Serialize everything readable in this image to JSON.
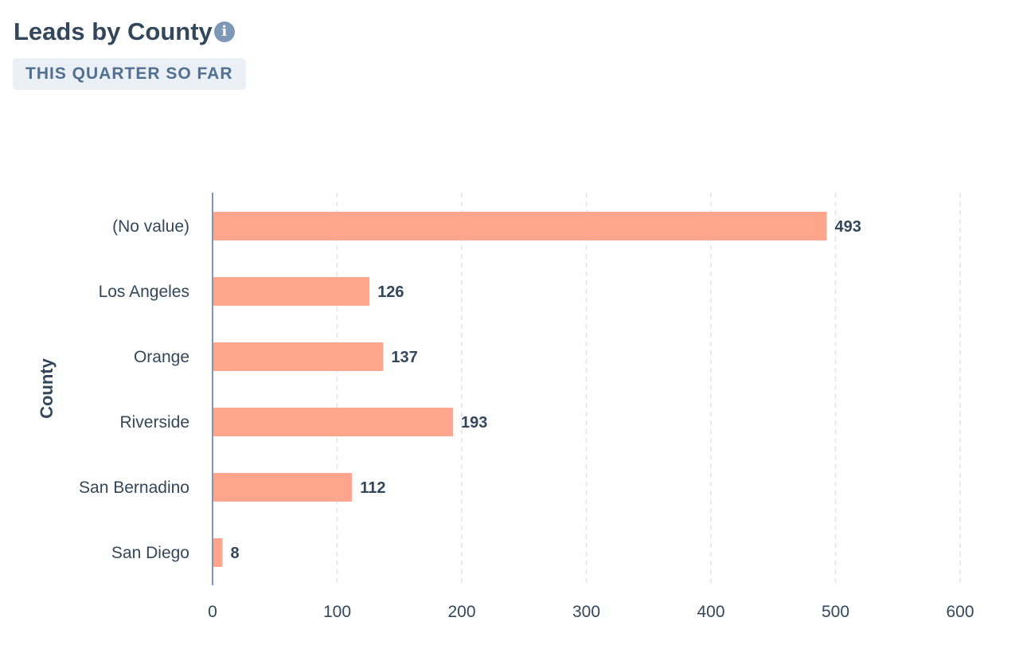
{
  "header": {
    "title": "Leads by County",
    "info_icon": "info-icon",
    "date_range": "THIS QUARTER SO FAR"
  },
  "chart_data": {
    "type": "bar",
    "orientation": "horizontal",
    "title": "Leads by County",
    "categories": [
      "(No value)",
      "Los Angeles",
      "Orange",
      "Riverside",
      "San Bernadino",
      "San Diego"
    ],
    "values": [
      493,
      126,
      137,
      193,
      112,
      8
    ],
    "xlabel": "",
    "ylabel": "County",
    "xlim": [
      0,
      600
    ],
    "xticks": [
      0,
      100,
      200,
      300,
      400,
      500,
      600
    ],
    "grid": true,
    "bar_color": "#fea58e"
  }
}
